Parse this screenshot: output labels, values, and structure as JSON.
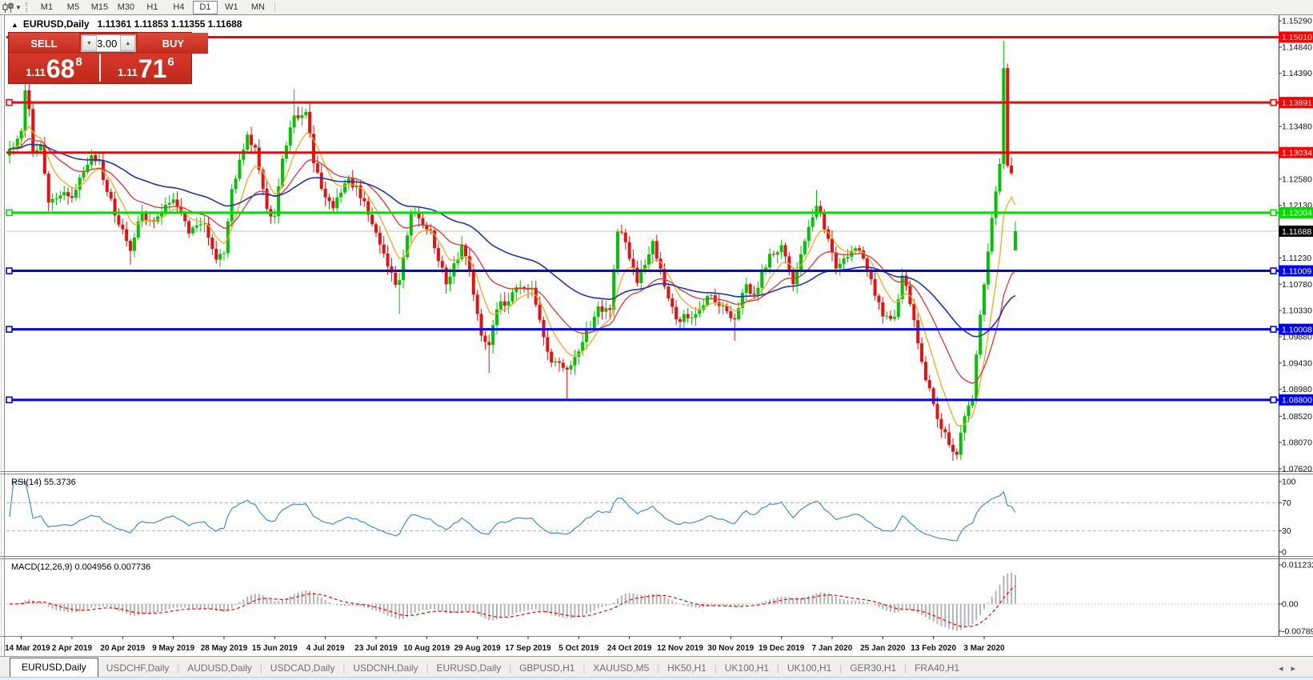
{
  "toolbar": {
    "timeframes": [
      "M1",
      "M5",
      "M15",
      "M30",
      "H1",
      "H4",
      "D1",
      "W1",
      "MN"
    ],
    "active_timeframe": "D1",
    "chart_type_icon": "candlestick-chart-icon",
    "dropdown_caret": "▼"
  },
  "chart_header": {
    "collapse_arrow": "▲",
    "symbol": "EURUSD,Daily",
    "ohlc": "1.11361 1.11853 1.11355 1.11688"
  },
  "trade_panel": {
    "sell_label": "SELL",
    "buy_label": "BUY",
    "volume": "3.00",
    "spin_down": "▼",
    "spin_up": "▲",
    "sell_price": {
      "small": "1.11",
      "big": "68",
      "sup": "8"
    },
    "buy_price": {
      "small": "1.11",
      "big": "71",
      "sup": "6"
    }
  },
  "chart_data": {
    "type": "candlestick",
    "symbol": "EURUSD",
    "timeframe": "Daily",
    "colors": {
      "up": "#00c400",
      "down": "#e81010",
      "bg": "#ffffff",
      "current_line": "#c4c4c4",
      "axis_text": "#111111"
    },
    "price_axis": {
      "ticks": [
        "1.15290",
        "1.14840",
        "1.14390",
        "1.13480",
        "1.12580",
        "1.12130",
        "1.11230",
        "1.10780",
        "1.10330",
        "1.09880",
        "1.09430",
        "1.08980",
        "1.08520",
        "1.08070",
        "1.07620"
      ]
    },
    "date_ticks": [
      "14 Mar 2019",
      "2 Apr 2019",
      "20 Apr 2019",
      "9 May 2019",
      "28 May 2019",
      "15 Jun 2019",
      "4 Jul 2019",
      "23 Jul 2019",
      "10 Aug 2019",
      "29 Aug 2019",
      "17 Sep 2019",
      "5 Oct 2019",
      "24 Oct 2019",
      "12 Nov 2019",
      "30 Nov 2019",
      "19 Dec 2019",
      "7 Jan 2020",
      "25 Jan 2020",
      "13 Feb 2020",
      "3 Mar 2020"
    ],
    "candles_per_tick": 13,
    "close_keypoints": [
      [
        0,
        1.131
      ],
      [
        3,
        1.134
      ],
      [
        4,
        1.141
      ],
      [
        5,
        1.1378
      ],
      [
        6,
        1.1302
      ],
      [
        8,
        1.1316
      ],
      [
        10,
        1.1218
      ],
      [
        13,
        1.123
      ],
      [
        16,
        1.1226
      ],
      [
        19,
        1.127
      ],
      [
        21,
        1.1299
      ],
      [
        23,
        1.129
      ],
      [
        25,
        1.1236
      ],
      [
        28,
        1.118
      ],
      [
        31,
        1.1135
      ],
      [
        34,
        1.12
      ],
      [
        37,
        1.1185
      ],
      [
        42,
        1.1223
      ],
      [
        46,
        1.1165
      ],
      [
        50,
        1.1182
      ],
      [
        53,
        1.112
      ],
      [
        55,
        1.1131
      ],
      [
        57,
        1.1241
      ],
      [
        61,
        1.1334
      ],
      [
        63,
        1.1312
      ],
      [
        66,
        1.1207
      ],
      [
        68,
        1.1195
      ],
      [
        70,
        1.1293
      ],
      [
        73,
        1.1367
      ],
      [
        76,
        1.1373
      ],
      [
        78,
        1.1285
      ],
      [
        81,
        1.1227
      ],
      [
        83,
        1.1208
      ],
      [
        87,
        1.1259
      ],
      [
        91,
        1.122
      ],
      [
        95,
        1.1146
      ],
      [
        99,
        1.1077
      ],
      [
        100,
        1.1085
      ],
      [
        103,
        1.12
      ],
      [
        106,
        1.118
      ],
      [
        108,
        1.117
      ],
      [
        112,
        1.1078
      ],
      [
        116,
        1.1145
      ],
      [
        118,
        1.1101
      ],
      [
        121,
        1.099
      ],
      [
        123,
        1.0974
      ],
      [
        125,
        1.1035
      ],
      [
        131,
        1.1073
      ],
      [
        134,
        1.1072
      ],
      [
        136,
        1.1017
      ],
      [
        139,
        1.0944
      ],
      [
        143,
        1.0932
      ],
      [
        147,
        1.0979
      ],
      [
        151,
        1.104
      ],
      [
        154,
        1.1034
      ],
      [
        156,
        1.1168
      ],
      [
        158,
        1.115
      ],
      [
        161,
        1.108
      ],
      [
        165,
        1.1152
      ],
      [
        168,
        1.1074
      ],
      [
        171,
        1.1018
      ],
      [
        175,
        1.1021
      ],
      [
        180,
        1.1059
      ],
      [
        186,
        1.1018
      ],
      [
        189,
        1.1078
      ],
      [
        191,
        1.106
      ],
      [
        195,
        1.113
      ],
      [
        198,
        1.1145
      ],
      [
        201,
        1.1078
      ],
      [
        205,
        1.1176
      ],
      [
        207,
        1.1212
      ],
      [
        209,
        1.1172
      ],
      [
        212,
        1.1105
      ],
      [
        214,
        1.1122
      ],
      [
        218,
        1.1136
      ],
      [
        224,
        1.1023
      ],
      [
        227,
        1.1022
      ],
      [
        229,
        1.1093
      ],
      [
        231,
        1.1044
      ],
      [
        234,
        1.0945
      ],
      [
        237,
        1.0873
      ],
      [
        239,
        1.083
      ],
      [
        243,
        1.0786
      ],
      [
        245,
        1.0852
      ],
      [
        247,
        1.088
      ],
      [
        249,
        1.1026
      ],
      [
        251,
        1.1134
      ],
      [
        253,
        1.1237
      ],
      [
        254,
        1.1284
      ],
      [
        255,
        1.1448
      ],
      [
        256,
        1.1281
      ],
      [
        257,
        1.1268
      ],
      [
        258,
        1.11688
      ]
    ],
    "wick_overrides": [
      {
        "i": 4,
        "high": 1.1448
      },
      {
        "i": 31,
        "low": 1.1111
      },
      {
        "i": 73,
        "high": 1.1412
      },
      {
        "i": 100,
        "low": 1.1027
      },
      {
        "i": 123,
        "low": 1.0926
      },
      {
        "i": 143,
        "low": 1.0879
      },
      {
        "i": 186,
        "low": 1.0981
      },
      {
        "i": 207,
        "high": 1.1239
      },
      {
        "i": 243,
        "low": 1.0778
      },
      {
        "i": 255,
        "high": 1.1495
      }
    ],
    "last_candle": {
      "open": 1.11361,
      "high": 1.11853,
      "low": 1.11355,
      "close": 1.11688
    },
    "current_price": {
      "value": 1.11688,
      "label": "1.11688",
      "line_color": "#c4c4c4",
      "box_color": "#000000"
    },
    "hlines": [
      {
        "price": 1.1501,
        "label": "1.15010",
        "color": "#ff0000",
        "handles": false
      },
      {
        "price": 1.13891,
        "label": "1.13891",
        "color": "#ff0000",
        "handles": true
      },
      {
        "price": 1.13034,
        "label": "1.13034",
        "color": "#ff0000",
        "handles": false
      },
      {
        "price": 1.12004,
        "label": "1.12004",
        "color": "#00dd00",
        "handles": true
      },
      {
        "price": 1.11009,
        "label": "1.11009",
        "color": "#0000ff",
        "handles": true
      },
      {
        "price": 1.10008,
        "label": "1.10008",
        "color": "#0000ff",
        "handles": true
      },
      {
        "price": 1.088,
        "label": "1.08800",
        "color": "#0000ff",
        "handles": true
      }
    ],
    "moving_averages": [
      {
        "period": 8,
        "color": "#f7a81d",
        "width": 1.3
      },
      {
        "period": 22,
        "color": "#e23434",
        "width": 1.3
      },
      {
        "period": 55,
        "color": "#1f35b5",
        "width": 1.6
      }
    ],
    "rsi": {
      "label": "RSI(14) 55.3736",
      "period": 14,
      "color": "#3f8fd2",
      "levels": [
        70,
        30
      ],
      "scale_labels": [
        "100",
        "70",
        "30",
        "0"
      ]
    },
    "macd": {
      "label": "MACD(12,26,9) 0.004956 0.007736",
      "fast": 12,
      "slow": 26,
      "signal": 9,
      "hist_color": "#b4b4b4",
      "signal_color": "#ff0000",
      "axis_labels": [
        "0.011232",
        "0.00",
        "-0.007894"
      ]
    }
  },
  "tabs": {
    "items": [
      {
        "label": "EURUSD,Daily",
        "active": true
      },
      {
        "label": "USDCHF,Daily",
        "active": false
      },
      {
        "label": "AUDUSD,Daily",
        "active": false
      },
      {
        "label": "USDCAD,Daily",
        "active": false
      },
      {
        "label": "USDCNH,Daily",
        "active": false
      },
      {
        "label": "EURUSD,Daily",
        "active": false
      },
      {
        "label": "GBPUSD,H1",
        "active": false
      },
      {
        "label": "XAUUSD,M5",
        "active": false
      },
      {
        "label": "HK50,H1",
        "active": false
      },
      {
        "label": "UK100,H1",
        "active": false
      },
      {
        "label": "UK100,H1",
        "active": false
      },
      {
        "label": "GER30,H1",
        "active": false
      },
      {
        "label": "FRA40,H1",
        "active": false
      }
    ],
    "prev_arrow": "◂",
    "next_arrow": "▸"
  }
}
